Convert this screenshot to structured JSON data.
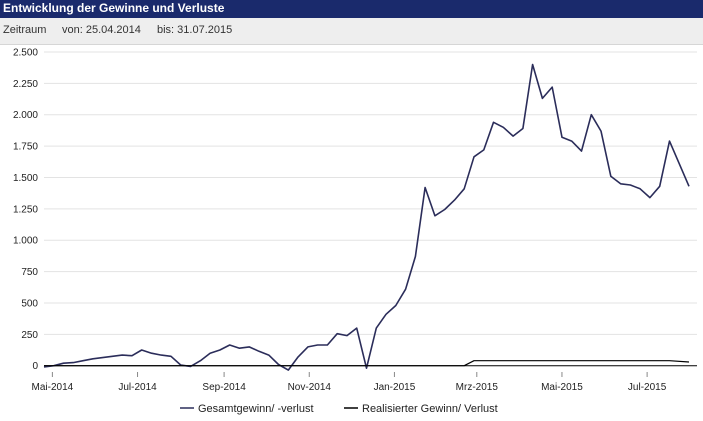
{
  "header": {
    "title": "Entwicklung der Gewinne und Verluste"
  },
  "range": {
    "label": "Zeitraum",
    "from": "von: 25.04.2014",
    "to": "bis: 31.07.2015"
  },
  "colors": {
    "header_bg": "#1a2a6c",
    "series_total": "#2b2d5a",
    "series_realized": "#000000",
    "grid": "#e3e3e3"
  },
  "chart_data": {
    "type": "line",
    "title": "Entwicklung der Gewinne und Verluste",
    "xlabel": "",
    "ylabel": "",
    "ylim": [
      -50,
      2500
    ],
    "yticks": [
      0,
      250,
      500,
      750,
      1000,
      1250,
      1500,
      1750,
      2000,
      2250,
      2500
    ],
    "ytick_labels": [
      "0",
      "250",
      "500",
      "750",
      "1.000",
      "1.250",
      "1.500",
      "1.750",
      "2.000",
      "2.250",
      "2.500"
    ],
    "xlim": [
      "2014-04-25",
      "2015-07-31"
    ],
    "xticks": [
      {
        "date": "2014-05-01",
        "label": "Mai-2014"
      },
      {
        "date": "2014-07-01",
        "label": "Jul-2014"
      },
      {
        "date": "2014-09-01",
        "label": "Sep-2014"
      },
      {
        "date": "2014-11-01",
        "label": "Nov-2014"
      },
      {
        "date": "2015-01-01",
        "label": "Jan-2015"
      },
      {
        "date": "2015-03-01",
        "label": "Mrz-2015"
      },
      {
        "date": "2015-05-01",
        "label": "Mai-2015"
      },
      {
        "date": "2015-07-01",
        "label": "Jul-2015"
      }
    ],
    "grid": true,
    "legend": "bottom",
    "series": [
      {
        "name": "Gesamtgewinn/ -verlust",
        "points": [
          [
            "2014-04-25",
            -10
          ],
          [
            "2014-05-02",
            0
          ],
          [
            "2014-05-09",
            20
          ],
          [
            "2014-05-16",
            25
          ],
          [
            "2014-05-23",
            40
          ],
          [
            "2014-05-30",
            55
          ],
          [
            "2014-06-06",
            65
          ],
          [
            "2014-06-13",
            75
          ],
          [
            "2014-06-20",
            85
          ],
          [
            "2014-06-27",
            80
          ],
          [
            "2014-07-04",
            125
          ],
          [
            "2014-07-11",
            100
          ],
          [
            "2014-07-18",
            85
          ],
          [
            "2014-07-25",
            75
          ],
          [
            "2014-08-01",
            5
          ],
          [
            "2014-08-08",
            -5
          ],
          [
            "2014-08-15",
            40
          ],
          [
            "2014-08-22",
            100
          ],
          [
            "2014-08-29",
            125
          ],
          [
            "2014-09-05",
            165
          ],
          [
            "2014-09-12",
            140
          ],
          [
            "2014-09-19",
            150
          ],
          [
            "2014-09-26",
            115
          ],
          [
            "2014-10-03",
            85
          ],
          [
            "2014-10-10",
            10
          ],
          [
            "2014-10-17",
            -35
          ],
          [
            "2014-10-24",
            70
          ],
          [
            "2014-10-31",
            150
          ],
          [
            "2014-11-07",
            165
          ],
          [
            "2014-11-14",
            165
          ],
          [
            "2014-11-21",
            255
          ],
          [
            "2014-11-28",
            240
          ],
          [
            "2014-12-05",
            300
          ],
          [
            "2014-12-12",
            -20
          ],
          [
            "2014-12-19",
            300
          ],
          [
            "2014-12-26",
            410
          ],
          [
            "2015-01-02",
            480
          ],
          [
            "2015-01-09",
            610
          ],
          [
            "2015-01-16",
            870
          ],
          [
            "2015-01-23",
            1420
          ],
          [
            "2015-01-30",
            1195
          ],
          [
            "2015-02-06",
            1245
          ],
          [
            "2015-02-13",
            1320
          ],
          [
            "2015-02-20",
            1410
          ],
          [
            "2015-02-27",
            1665
          ],
          [
            "2015-03-06",
            1720
          ],
          [
            "2015-03-13",
            1940
          ],
          [
            "2015-03-20",
            1900
          ],
          [
            "2015-03-27",
            1830
          ],
          [
            "2015-04-03",
            1890
          ],
          [
            "2015-04-10",
            2400
          ],
          [
            "2015-04-17",
            2130
          ],
          [
            "2015-04-24",
            2220
          ],
          [
            "2015-05-01",
            1820
          ],
          [
            "2015-05-08",
            1790
          ],
          [
            "2015-05-15",
            1710
          ],
          [
            "2015-05-22",
            2000
          ],
          [
            "2015-05-29",
            1870
          ],
          [
            "2015-06-05",
            1510
          ],
          [
            "2015-06-12",
            1450
          ],
          [
            "2015-06-19",
            1440
          ],
          [
            "2015-06-26",
            1410
          ],
          [
            "2015-07-03",
            1340
          ],
          [
            "2015-07-10",
            1430
          ],
          [
            "2015-07-17",
            1790
          ],
          [
            "2015-07-31",
            1430
          ]
        ]
      },
      {
        "name": "Realisierter Gewinn/ Verlust",
        "points": [
          [
            "2014-04-25",
            0
          ],
          [
            "2015-02-20",
            0
          ],
          [
            "2015-02-27",
            40
          ],
          [
            "2015-07-17",
            40
          ],
          [
            "2015-07-31",
            30
          ]
        ]
      }
    ]
  }
}
